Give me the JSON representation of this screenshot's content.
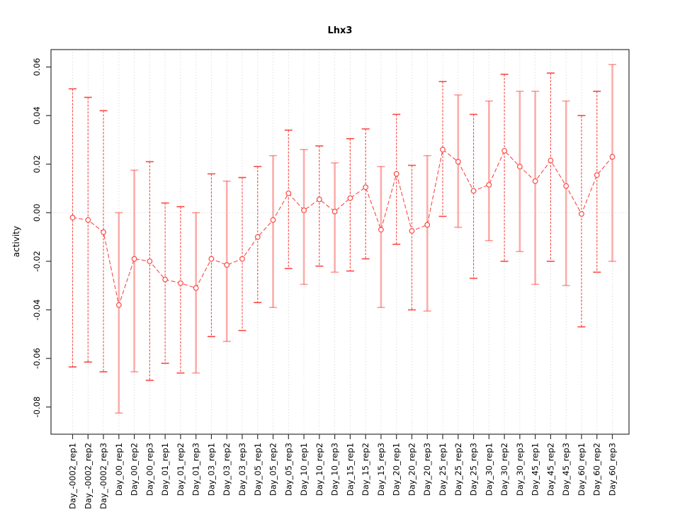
{
  "title": "Lhx3",
  "y_axis": {
    "label": "activity",
    "tick_values": [
      -0.08,
      -0.06,
      -0.04,
      -0.02,
      0.0,
      0.02,
      0.04,
      0.06
    ]
  },
  "chart_data": {
    "type": "line",
    "subtype": "points_with_error_bars",
    "title": "Lhx3",
    "xlabel": "",
    "ylabel": "activity",
    "ylim": [
      -0.091,
      0.067
    ],
    "y_ticks": [
      -0.08,
      -0.06,
      -0.04,
      -0.02,
      0.0,
      0.02,
      0.04,
      0.06
    ],
    "grid": "dotted vertical line per category; dotted horizontal line at y=0",
    "legend_position": "none",
    "categories": [
      "Day_-0002_rep1",
      "Day_-0002_rep2",
      "Day_-0002_rep3",
      "Day_00_rep1",
      "Day_00_rep2",
      "Day_00_rep3",
      "Day_01_rep1",
      "Day_01_rep2",
      "Day_01_rep3",
      "Day_03_rep1",
      "Day_03_rep2",
      "Day_03_rep3",
      "Day_05_rep1",
      "Day_05_rep2",
      "Day_05_rep3",
      "Day_10_rep1",
      "Day_10_rep2",
      "Day_10_rep3",
      "Day_15_rep1",
      "Day_15_rep2",
      "Day_15_rep3",
      "Day_20_rep1",
      "Day_20_rep2",
      "Day_20_rep3",
      "Day_25_rep1",
      "Day_25_rep2",
      "Day_25_rep3",
      "Day_30_rep1",
      "Day_30_rep2",
      "Day_30_rep3",
      "Day_45_rep1",
      "Day_45_rep2",
      "Day_45_rep3",
      "Day_60_rep1",
      "Day_60_rep2",
      "Day_60_rep3"
    ],
    "series": [
      {
        "name": "activity",
        "values": [
          -0.002,
          -0.003,
          -0.008,
          -0.038,
          -0.019,
          -0.02,
          -0.0275,
          -0.029,
          -0.031,
          -0.019,
          -0.0215,
          -0.019,
          -0.01,
          -0.003,
          0.008,
          0.001,
          0.0055,
          0.0005,
          0.006,
          0.0105,
          -0.007,
          0.016,
          -0.0075,
          -0.005,
          0.026,
          0.021,
          0.009,
          0.0115,
          0.0255,
          0.019,
          0.013,
          0.0215,
          0.011,
          -0.0005,
          0.0155,
          0.023
        ],
        "error_high": [
          0.051,
          0.0475,
          0.042,
          0.0,
          0.0175,
          0.021,
          0.004,
          0.0025,
          0.0,
          0.016,
          0.013,
          0.0145,
          0.019,
          0.0235,
          0.034,
          0.026,
          0.0275,
          0.0205,
          0.0305,
          0.0345,
          0.019,
          0.0405,
          0.0195,
          0.0235,
          0.054,
          0.0485,
          0.0405,
          0.046,
          0.057,
          0.05,
          0.05,
          0.0575,
          0.046,
          0.04,
          0.05,
          0.061
        ],
        "error_low": [
          -0.0635,
          -0.0615,
          -0.0655,
          -0.0825,
          -0.0655,
          -0.069,
          -0.062,
          -0.066,
          -0.066,
          -0.051,
          -0.053,
          -0.0485,
          -0.037,
          -0.039,
          -0.023,
          -0.0295,
          -0.022,
          -0.0245,
          -0.024,
          -0.019,
          -0.039,
          -0.013,
          -0.04,
          -0.0405,
          -0.0015,
          -0.006,
          -0.027,
          -0.0115,
          -0.02,
          -0.016,
          -0.0295,
          -0.02,
          -0.03,
          -0.047,
          -0.0245,
          -0.02
        ],
        "pale_bar_indices": [
          3,
          4,
          8,
          10,
          13,
          15,
          17,
          20,
          23,
          25,
          27,
          29,
          30,
          32,
          35
        ]
      }
    ],
    "colors": {
      "point": "#fb4944",
      "line": "#fb4944",
      "error_bar": "#fb4944",
      "error_bar_pale": "#fbadaa",
      "grid": "#d2d2d2",
      "axis_box": "#333333",
      "background": "#ffffff"
    }
  }
}
